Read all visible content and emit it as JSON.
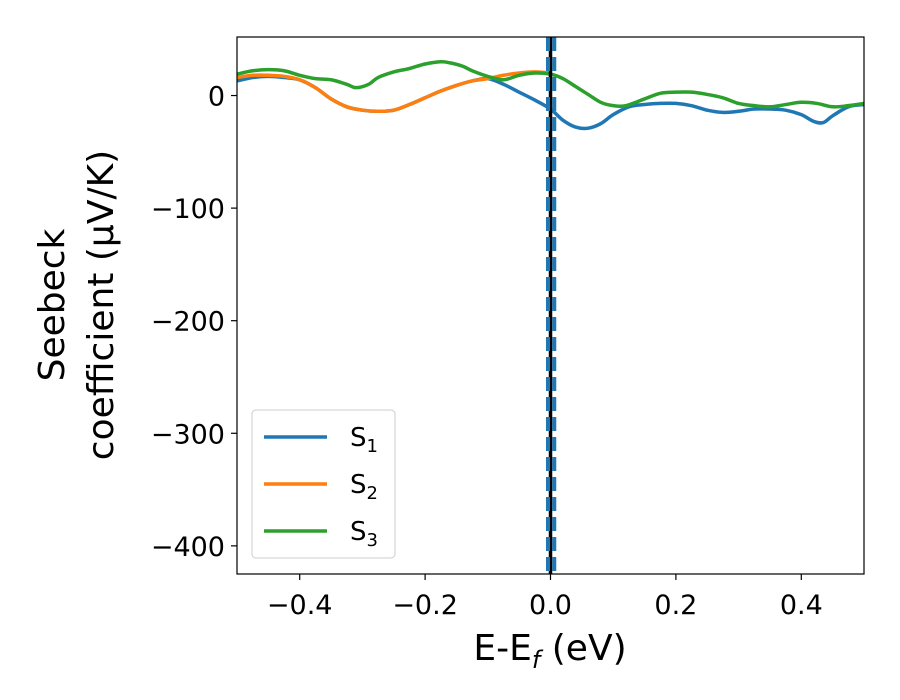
{
  "chart_data": {
    "type": "line",
    "title": "",
    "xlabel": {
      "main": "E-E",
      "sub": "f",
      "rest": " (eV)"
    },
    "ylabel": {
      "line1": "Seebeck",
      "line2": "coefficient  (μV/K)"
    },
    "xlim": [
      -0.5,
      0.5
    ],
    "ylim": [
      -425,
      52
    ],
    "xticks": [
      {
        "value": -0.4,
        "label": "−0.4"
      },
      {
        "value": -0.2,
        "label": "−0.2"
      },
      {
        "value": 0.0,
        "label": "0.0"
      },
      {
        "value": 0.2,
        "label": "0.2"
      },
      {
        "value": 0.4,
        "label": "0.4"
      }
    ],
    "yticks": [
      {
        "value": 0,
        "label": "0"
      },
      {
        "value": -100,
        "label": "−100"
      },
      {
        "value": -200,
        "label": "−200"
      },
      {
        "value": -300,
        "label": "−300"
      },
      {
        "value": -400,
        "label": "−400"
      }
    ],
    "grid": false,
    "legend_position": "lower-left",
    "vertical_lines": [
      {
        "x": 0.0,
        "style": "solid",
        "color": "#000000"
      },
      {
        "x": -0.004,
        "style": "dashed",
        "color": "#1f77b4"
      },
      {
        "x": 0.006,
        "style": "dashed",
        "color": "#1f77b4"
      }
    ],
    "series": [
      {
        "name": "S",
        "sub": "1",
        "color": "#1f77b4",
        "x": [
          -0.5,
          -0.475,
          -0.45,
          -0.425,
          -0.4,
          -0.375,
          -0.35,
          -0.325,
          -0.3,
          -0.275,
          -0.25,
          -0.225,
          -0.2,
          -0.175,
          -0.15,
          -0.125,
          -0.1,
          -0.075,
          -0.05,
          -0.025,
          0.0,
          0.02,
          0.04,
          0.06,
          0.08,
          0.1,
          0.125,
          0.15,
          0.175,
          0.2,
          0.225,
          0.25,
          0.275,
          0.3,
          0.325,
          0.35,
          0.375,
          0.4,
          0.42,
          0.435,
          0.45,
          0.475,
          0.5
        ],
        "y": [
          13,
          16,
          17,
          16,
          14,
          7,
          -3,
          -10,
          -13,
          -14,
          -13,
          -8,
          -2,
          4,
          9,
          13,
          15,
          10,
          3,
          -4,
          -12,
          -22,
          -28,
          -29,
          -25,
          -17,
          -10,
          -8,
          -7,
          -7,
          -9,
          -13,
          -15,
          -14,
          -12,
          -12,
          -13,
          -17,
          -23,
          -24,
          -18,
          -10,
          -8
        ]
      },
      {
        "name": "S",
        "sub": "2",
        "color": "#ff7f0e",
        "x": [
          -0.5,
          -0.475,
          -0.45,
          -0.425,
          -0.4,
          -0.375,
          -0.35,
          -0.325,
          -0.3,
          -0.275,
          -0.25,
          -0.225,
          -0.2,
          -0.175,
          -0.15,
          -0.125,
          -0.1,
          -0.075,
          -0.05,
          -0.025,
          0.0
        ],
        "y": [
          16,
          18,
          18,
          17,
          14,
          7,
          -3,
          -10,
          -13,
          -14,
          -13,
          -8,
          -2,
          4,
          9,
          13,
          15,
          18,
          20,
          21,
          20
        ]
      },
      {
        "name": "S",
        "sub": "3",
        "color": "#2ca02c",
        "x": [
          -0.5,
          -0.475,
          -0.45,
          -0.425,
          -0.4,
          -0.375,
          -0.35,
          -0.325,
          -0.31,
          -0.29,
          -0.275,
          -0.25,
          -0.225,
          -0.2,
          -0.175,
          -0.16,
          -0.14,
          -0.125,
          -0.1,
          -0.075,
          -0.05,
          -0.025,
          0.0,
          0.02,
          0.04,
          0.06,
          0.08,
          0.1,
          0.12,
          0.15,
          0.175,
          0.2,
          0.225,
          0.25,
          0.275,
          0.3,
          0.325,
          0.35,
          0.375,
          0.4,
          0.425,
          0.45,
          0.475,
          0.5
        ],
        "y": [
          19,
          22,
          23,
          22,
          18,
          15,
          14,
          10,
          7,
          10,
          16,
          21,
          24,
          28,
          30,
          29,
          26,
          22,
          17,
          14,
          18,
          20,
          19,
          15,
          8,
          1,
          -6,
          -9,
          -9,
          -3,
          2,
          3,
          3,
          1,
          -2,
          -7,
          -9,
          -10,
          -8,
          -6,
          -7,
          -10,
          -9,
          -7
        ]
      }
    ]
  }
}
